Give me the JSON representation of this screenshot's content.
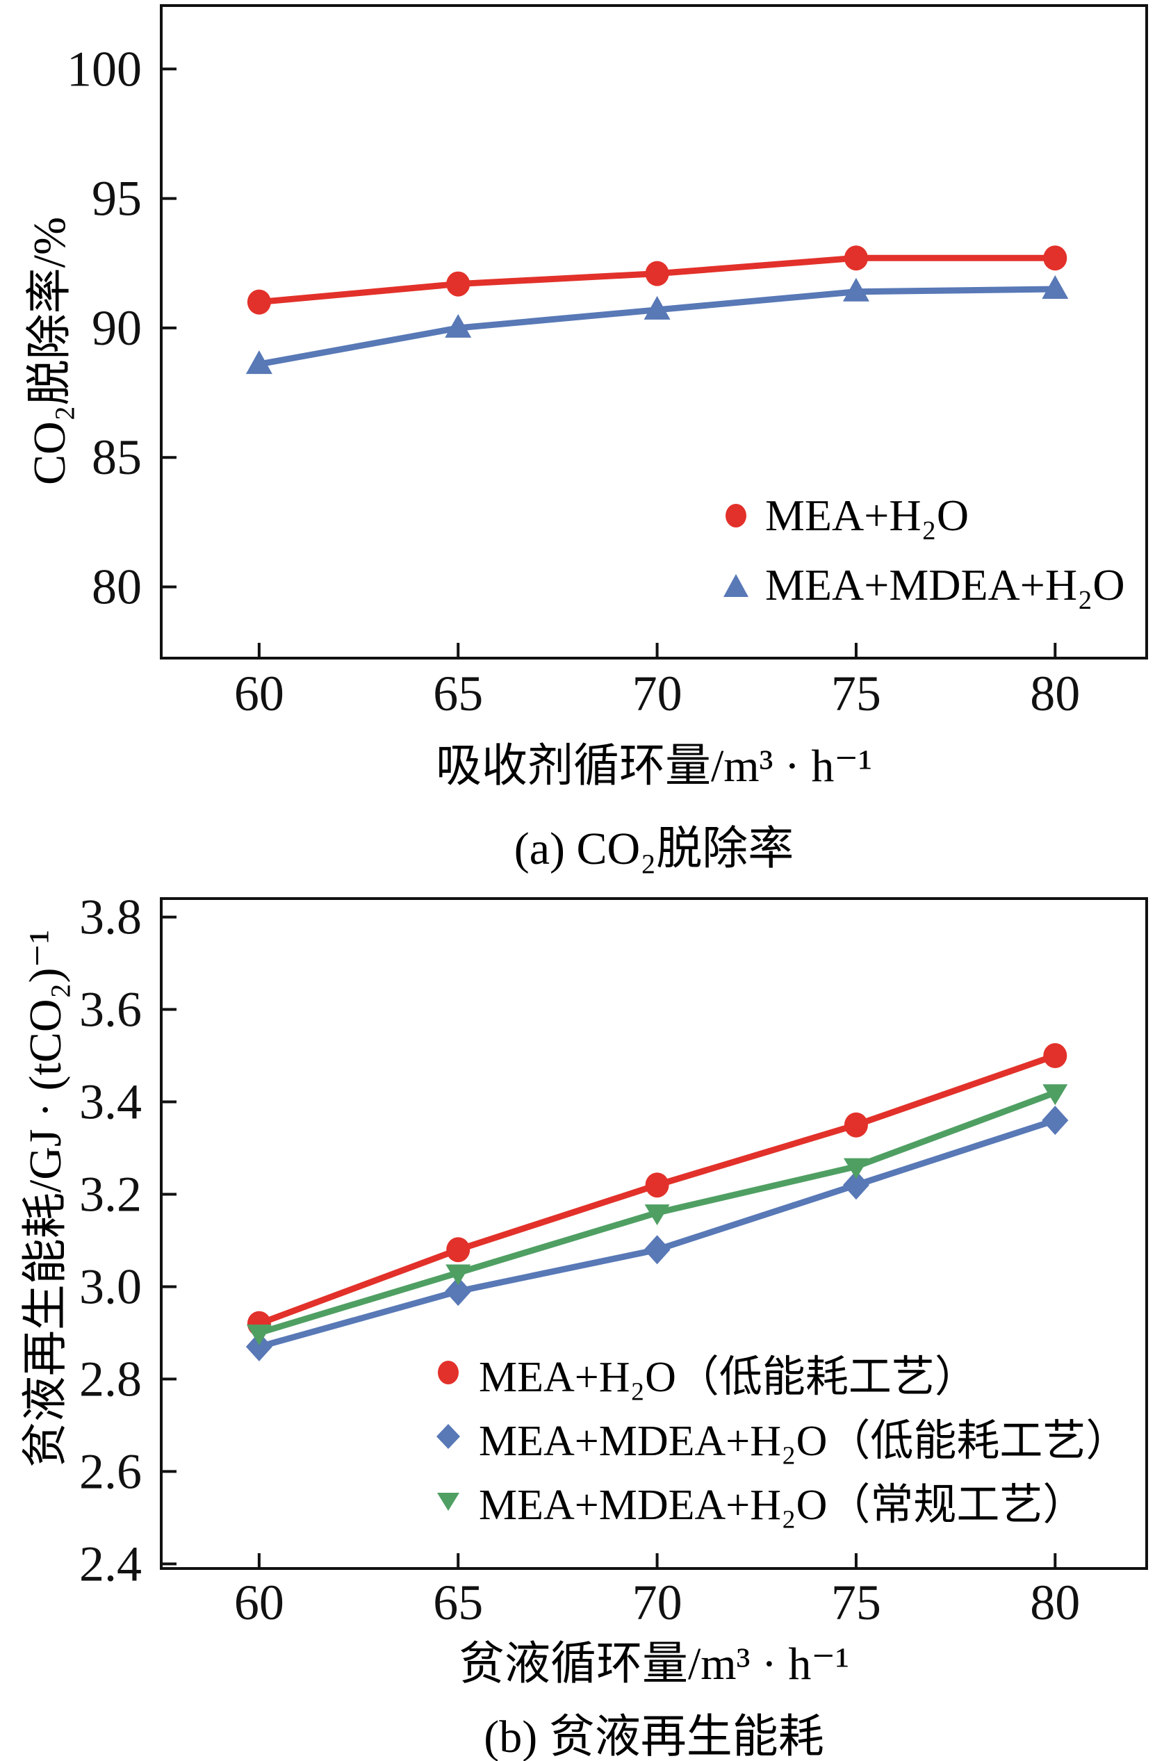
{
  "colors": {
    "axis": "#111111",
    "red_series": "#e2312a",
    "blue_series": "#5878b6",
    "green_series": "#4f9f63"
  },
  "chart_data": [
    {
      "type": "line",
      "title": "(a) CO₂脱除率",
      "xlabel": "吸收剂循环量/m³ · h⁻¹",
      "ylabel": "CO₂脱除率/%",
      "x": [
        60,
        65,
        70,
        75,
        80
      ],
      "xlim": [
        57.54,
        82.3
      ],
      "ylim": [
        77.25,
        102.45
      ],
      "xticks": [
        60,
        65,
        70,
        75,
        80
      ],
      "xtick_labels": [
        "60",
        "65",
        "70",
        "75",
        "80"
      ],
      "yticks": [
        80,
        85,
        90,
        95,
        100
      ],
      "ytick_labels": [
        "80",
        "85",
        "90",
        "95",
        "100"
      ],
      "grid": false,
      "legend_position": "inside lower right",
      "series": [
        {
          "name": "MEA+H₂O",
          "marker": "circle",
          "color": "#e2312a",
          "values": [
            91.0,
            91.7,
            92.1,
            92.7,
            92.7
          ]
        },
        {
          "name": "MEA+MDEA+H₂O",
          "marker": "triangle-up",
          "color": "#5878b6",
          "values": [
            88.6,
            90.0,
            90.7,
            91.4,
            91.5
          ]
        }
      ]
    },
    {
      "type": "line",
      "title": "(b) 贫液再生能耗",
      "xlabel": "贫液循环量/m³ · h⁻¹",
      "ylabel": "贫液再生能耗/GJ · (tCO₂)⁻¹",
      "x": [
        60,
        65,
        70,
        75,
        80
      ],
      "xlim": [
        57.54,
        82.3
      ],
      "ylim": [
        2.39,
        3.84
      ],
      "xticks": [
        60,
        65,
        70,
        75,
        80
      ],
      "xtick_labels": [
        "60",
        "65",
        "70",
        "75",
        "80"
      ],
      "yticks": [
        2.4,
        2.6,
        2.8,
        3.0,
        3.2,
        3.4,
        3.6,
        3.8
      ],
      "ytick_labels": [
        "2.4",
        "2.6",
        "2.8",
        "3.0",
        "3.2",
        "3.4",
        "3.6",
        "3.8"
      ],
      "grid": false,
      "legend_position": "inside lower center",
      "series": [
        {
          "name": "MEA+H₂O（低能耗工艺）",
          "marker": "circle",
          "color": "#e2312a",
          "values": [
            2.92,
            3.08,
            3.22,
            3.35,
            3.5
          ]
        },
        {
          "name": "MEA+MDEA+H₂O（低能耗工艺）",
          "marker": "diamond",
          "color": "#5878b6",
          "values": [
            2.87,
            2.99,
            3.08,
            3.22,
            3.36
          ]
        },
        {
          "name": "MEA+MDEA+H₂O（常规工艺）",
          "marker": "triangle-down",
          "color": "#4f9f63",
          "values": [
            2.9,
            3.03,
            3.16,
            3.26,
            3.42
          ]
        }
      ]
    }
  ]
}
